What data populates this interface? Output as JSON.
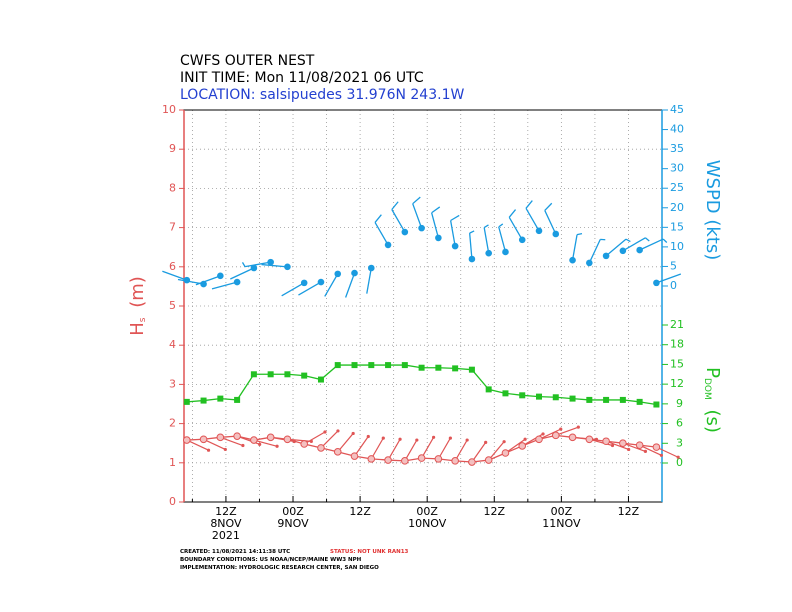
{
  "chart_data": {
    "type": "line",
    "title": "CWFS OUTER NEST",
    "subtitle": "INIT TIME: Mon 11/08/2021 06 UTC",
    "location": "LOCATION: salsipuedes 31.976N 243.1W",
    "ylabel": {
      "main": "H",
      "sub": "s",
      "unit": "(m)"
    },
    "y2label": "WSPD (kts)",
    "y3label": {
      "main": "P",
      "sub": "DOM",
      "unit": "(s)"
    },
    "xlim": [
      4.5,
      90
    ],
    "xticks": [
      {
        "value": 12,
        "label": "12Z"
      },
      {
        "value": 24,
        "label": "00Z"
      },
      {
        "value": 36,
        "label": "12Z"
      },
      {
        "value": 48,
        "label": "00Z"
      },
      {
        "value": 60,
        "label": "12Z"
      },
      {
        "value": 72,
        "label": "00Z"
      },
      {
        "value": 84,
        "label": "12Z"
      }
    ],
    "xdates": [
      {
        "value": 12,
        "label": "8NOV"
      },
      {
        "value": 24,
        "label": "9NOV"
      },
      {
        "value": 48,
        "label": "10NOV"
      },
      {
        "value": 72,
        "label": "11NOV"
      }
    ],
    "xyear": {
      "value": 12,
      "label": "2021"
    },
    "xminorticks": [
      6,
      18,
      30,
      42,
      54,
      66,
      78,
      90
    ],
    "x": [
      5,
      8,
      11,
      14,
      17,
      20,
      23,
      26,
      29,
      32,
      35,
      38,
      41,
      44,
      47,
      50,
      53,
      56,
      59,
      62,
      65,
      68,
      71,
      74,
      77,
      80,
      83,
      86,
      89
    ],
    "ylim": [
      0,
      10
    ],
    "yticks": [
      0,
      1,
      2,
      3,
      4,
      5,
      6,
      7,
      8,
      9,
      10
    ],
    "y2lim": [
      0,
      45
    ],
    "y2ticks": [
      0,
      5,
      10,
      15,
      20,
      25,
      30,
      35,
      40,
      45
    ],
    "y3lim": [
      0,
      21
    ],
    "y3ticks": [
      0,
      3,
      6,
      9,
      12,
      15,
      18,
      21
    ],
    "grid": true,
    "series": [
      {
        "name": "Hs",
        "color": "#e05555",
        "values": [
          1.58,
          1.6,
          1.65,
          1.68,
          1.58,
          1.65,
          1.6,
          1.48,
          1.38,
          1.28,
          1.17,
          1.1,
          1.07,
          1.05,
          1.12,
          1.1,
          1.05,
          1.02,
          1.07,
          1.25,
          1.43,
          1.6,
          1.7,
          1.65,
          1.6,
          1.55,
          1.5,
          1.45,
          1.4
        ],
        "dirs": [
          115,
          115,
          110,
          110,
          105,
          100,
          95,
          60,
          45,
          40,
          35,
          30,
          30,
          30,
          30,
          30,
          30,
          35,
          40,
          55,
          60,
          65,
          70,
          95,
          105,
          110,
          110,
          115,
          115
        ]
      },
      {
        "name": "WSPD",
        "axis": "y2",
        "color": "#1a9be0",
        "values": [
          1.5,
          0.5,
          2.6,
          1.0,
          4.6,
          6.1,
          4.9,
          0.8,
          1.0,
          3.1,
          3.3,
          4.6,
          10.5,
          13.8,
          14.8,
          12.3,
          10.2,
          6.9,
          8.4,
          8.7,
          11.8,
          14.1,
          13.3,
          6.6,
          5.9,
          7.7,
          9.0,
          9.2,
          0.8
        ],
        "dirs": [
          290,
          280,
          250,
          255,
          245,
          260,
          275,
          240,
          240,
          210,
          200,
          190,
          330,
          330,
          340,
          345,
          350,
          355,
          350,
          345,
          330,
          330,
          335,
          10,
          25,
          50,
          60,
          65,
          70
        ]
      },
      {
        "name": "Tp",
        "axis": "y3",
        "color": "#22c022",
        "values": [
          9.3,
          9.5,
          9.8,
          9.6,
          13.5,
          13.5,
          13.5,
          13.3,
          12.7,
          14.9,
          14.9,
          14.9,
          14.9,
          14.9,
          14.5,
          14.5,
          14.4,
          14.2,
          11.2,
          10.6,
          10.3,
          10.1,
          10.0,
          9.8,
          9.6,
          9.6,
          9.6,
          9.3,
          8.9
        ]
      }
    ],
    "footer": [
      "CREATED: 11/08/2021 14:11:38 UTC",
      "STATUS: NOT UNK RAN13",
      "BOUNDARY CONDITIONS: US NOAA/NCEP/MAINE WW3 NPH",
      "IMPLEMENTATION: HYDROLOGIC RESEARCH CENTER, SAN DIEGO"
    ]
  }
}
